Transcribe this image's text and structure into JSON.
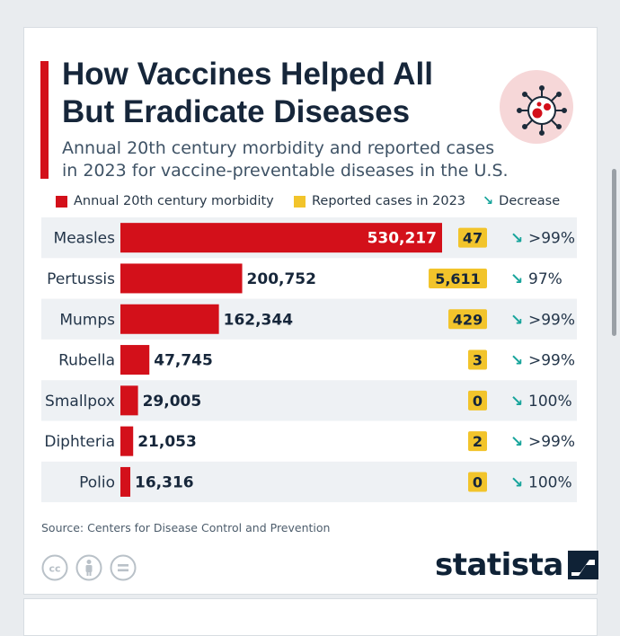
{
  "title": "How Vaccines Helped All But Eradicate Diseases",
  "subtitle": "Annual 20th century morbidity and reported cases in 2023 for vaccine-preventable diseases in the U.S.",
  "legend": {
    "morbidity": "Annual 20th century morbidity",
    "reported": "Reported cases in 2023",
    "decrease": "Decrease"
  },
  "icons": {
    "decrease": "arrow-down-right-icon",
    "virus": "virus-icon",
    "cc": "cc-icon",
    "attribution": "person-icon",
    "noderivs": "equals-icon",
    "brand_mark": "statista-mark-icon"
  },
  "colors": {
    "morbidity": "#d3101a",
    "reported": "#f2c42b",
    "decrease": "#17a49b",
    "row_stripe": "#eef1f4",
    "accent": "#d3101a"
  },
  "chart_data": {
    "type": "bar",
    "orientation": "horizontal",
    "categories": [
      "Measles",
      "Pertussis",
      "Mumps",
      "Rubella",
      "Smallpox",
      "Diphteria",
      "Polio"
    ],
    "series": [
      {
        "name": "Annual 20th century morbidity",
        "values": [
          530217,
          200752,
          162344,
          47745,
          29005,
          21053,
          16316
        ]
      },
      {
        "name": "Reported cases in 2023",
        "values": [
          47,
          5611,
          429,
          3,
          0,
          2,
          0
        ]
      }
    ],
    "value_labels": [
      "530,217",
      "200,752",
      "162,344",
      "47,745",
      "29,005",
      "21,053",
      "16,316"
    ],
    "reported_labels": [
      "47",
      "5,611",
      "429",
      "3",
      "0",
      "2",
      "0"
    ],
    "decrease_labels": [
      ">99%",
      "97%",
      ">99%",
      ">99%",
      "100%",
      ">99%",
      "100%"
    ],
    "xlim": [
      0,
      530217
    ]
  },
  "source": "Source: Centers for Disease Control and Prevention",
  "brand": "statista"
}
